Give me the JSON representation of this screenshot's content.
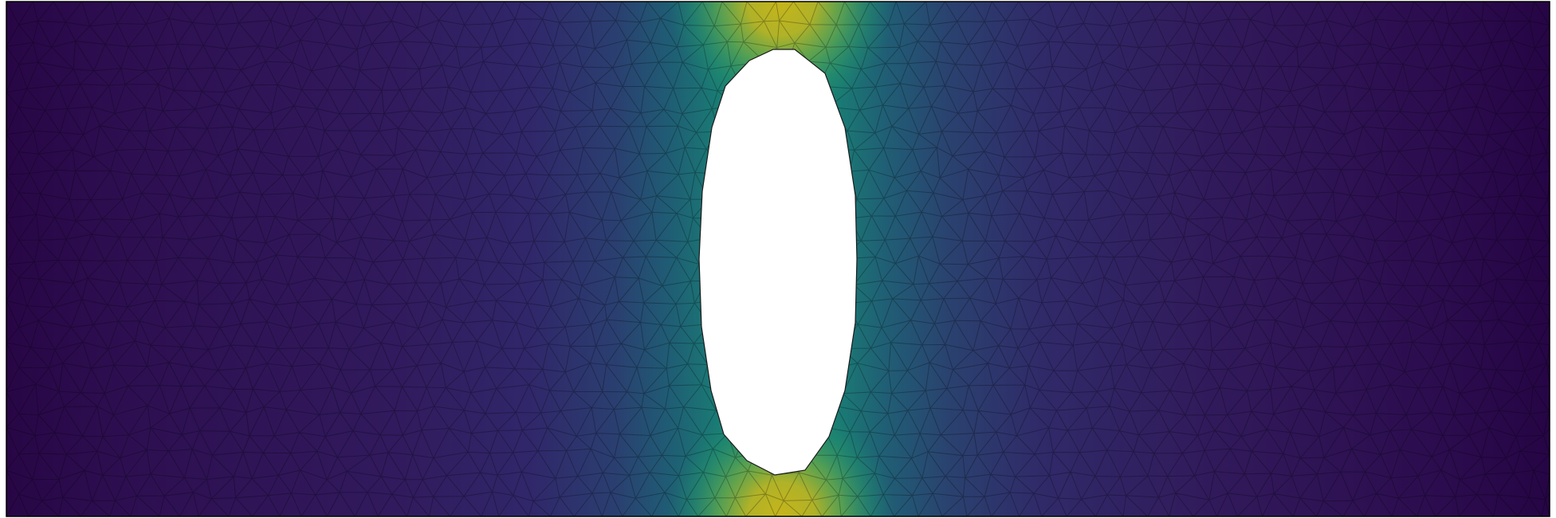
{
  "scene": {
    "kind": "finite-element field plot",
    "description_visible": "",
    "colormap": {
      "name": "viridis",
      "stops": [
        "#2b0a4a",
        "#30195e",
        "#2e2d6b",
        "#27486f",
        "#1f6a76",
        "#1b8a6f",
        "#3da35a",
        "#8fb43a",
        "#c9b21a"
      ]
    },
    "mesh": {
      "element_type": "triangle",
      "edge_color": "#000000",
      "edge_opacity": 0.28
    },
    "domain_outline_color": "#000000",
    "hole_fill": "#ffffff",
    "background": "#ffffff"
  }
}
